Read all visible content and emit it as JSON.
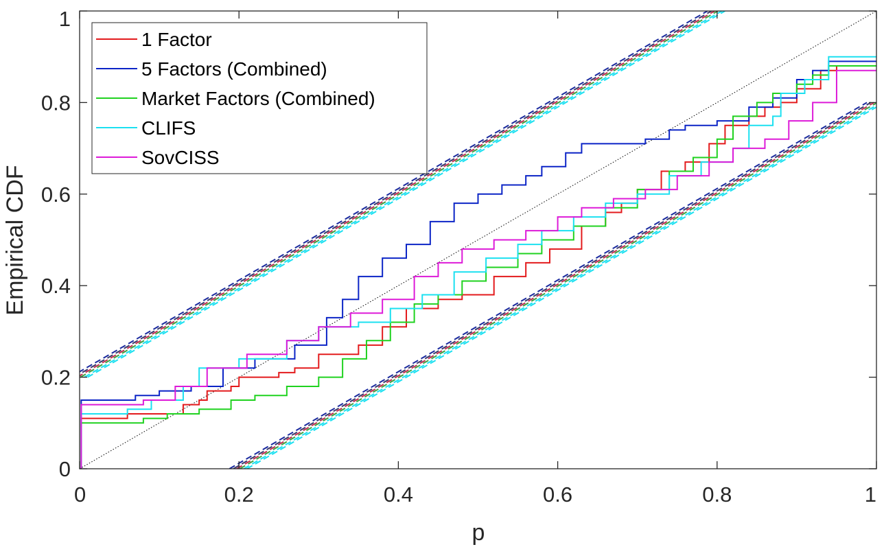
{
  "chart_data": {
    "type": "line",
    "xlabel": "p",
    "ylabel": "Empirical CDF",
    "xlim": [
      0,
      1
    ],
    "ylim": [
      0,
      1
    ],
    "xticks": [
      "0",
      "0.2",
      "0.4",
      "0.6",
      "0.8",
      "1"
    ],
    "yticks": [
      "0",
      "0.2",
      "0.4",
      "0.6",
      "0.8",
      "1"
    ],
    "legend_position": "top-left",
    "grid": false,
    "series": [
      {
        "name": "1 Factor",
        "color": "#e31a1c",
        "points": [
          [
            0,
            0
          ],
          [
            0.002,
            0.11
          ],
          [
            0.06,
            0.11
          ],
          [
            0.06,
            0.12
          ],
          [
            0.12,
            0.12
          ],
          [
            0.13,
            0.14
          ],
          [
            0.15,
            0.15
          ],
          [
            0.16,
            0.17
          ],
          [
            0.19,
            0.18
          ],
          [
            0.2,
            0.2
          ],
          [
            0.25,
            0.21
          ],
          [
            0.27,
            0.22
          ],
          [
            0.3,
            0.23
          ],
          [
            0.3,
            0.25
          ],
          [
            0.35,
            0.27
          ],
          [
            0.38,
            0.31
          ],
          [
            0.41,
            0.35
          ],
          [
            0.45,
            0.37
          ],
          [
            0.48,
            0.38
          ],
          [
            0.52,
            0.42
          ],
          [
            0.56,
            0.45
          ],
          [
            0.59,
            0.48
          ],
          [
            0.63,
            0.53
          ],
          [
            0.66,
            0.56
          ],
          [
            0.68,
            0.58
          ],
          [
            0.7,
            0.61
          ],
          [
            0.73,
            0.65
          ],
          [
            0.76,
            0.67
          ],
          [
            0.79,
            0.69
          ],
          [
            0.79,
            0.71
          ],
          [
            0.81,
            0.75
          ],
          [
            0.84,
            0.77
          ],
          [
            0.86,
            0.79
          ],
          [
            0.88,
            0.8
          ],
          [
            0.9,
            0.83
          ],
          [
            0.93,
            0.87
          ],
          [
            0.95,
            0.88
          ],
          [
            1,
            0.88
          ]
        ]
      },
      {
        "name": "5 Factors (Combined)",
        "color": "#0b24c6",
        "points": [
          [
            0,
            0
          ],
          [
            0.002,
            0.15
          ],
          [
            0.06,
            0.15
          ],
          [
            0.07,
            0.16
          ],
          [
            0.1,
            0.17
          ],
          [
            0.14,
            0.18
          ],
          [
            0.18,
            0.22
          ],
          [
            0.22,
            0.24
          ],
          [
            0.27,
            0.27
          ],
          [
            0.31,
            0.33
          ],
          [
            0.33,
            0.37
          ],
          [
            0.35,
            0.42
          ],
          [
            0.38,
            0.46
          ],
          [
            0.41,
            0.49
          ],
          [
            0.44,
            0.54
          ],
          [
            0.47,
            0.58
          ],
          [
            0.5,
            0.6
          ],
          [
            0.53,
            0.62
          ],
          [
            0.56,
            0.64
          ],
          [
            0.58,
            0.66
          ],
          [
            0.61,
            0.69
          ],
          [
            0.63,
            0.71
          ],
          [
            0.68,
            0.71
          ],
          [
            0.71,
            0.72
          ],
          [
            0.74,
            0.74
          ],
          [
            0.76,
            0.75
          ],
          [
            0.8,
            0.76
          ],
          [
            0.84,
            0.79
          ],
          [
            0.87,
            0.81
          ],
          [
            0.9,
            0.85
          ],
          [
            0.92,
            0.87
          ],
          [
            0.94,
            0.89
          ],
          [
            1,
            0.89
          ]
        ]
      },
      {
        "name": "Market Factors (Combined)",
        "color": "#1fd21f",
        "points": [
          [
            0,
            0
          ],
          [
            0.002,
            0.1
          ],
          [
            0.08,
            0.11
          ],
          [
            0.11,
            0.12
          ],
          [
            0.15,
            0.13
          ],
          [
            0.19,
            0.15
          ],
          [
            0.22,
            0.16
          ],
          [
            0.26,
            0.18
          ],
          [
            0.3,
            0.2
          ],
          [
            0.33,
            0.24
          ],
          [
            0.36,
            0.28
          ],
          [
            0.39,
            0.32
          ],
          [
            0.42,
            0.36
          ],
          [
            0.45,
            0.38
          ],
          [
            0.48,
            0.41
          ],
          [
            0.51,
            0.44
          ],
          [
            0.55,
            0.47
          ],
          [
            0.58,
            0.5
          ],
          [
            0.62,
            0.53
          ],
          [
            0.66,
            0.57
          ],
          [
            0.7,
            0.61
          ],
          [
            0.74,
            0.65
          ],
          [
            0.77,
            0.68
          ],
          [
            0.8,
            0.72
          ],
          [
            0.82,
            0.77
          ],
          [
            0.85,
            0.8
          ],
          [
            0.87,
            0.82
          ],
          [
            0.9,
            0.84
          ],
          [
            0.92,
            0.86
          ],
          [
            0.94,
            0.88
          ],
          [
            1,
            0.88
          ]
        ]
      },
      {
        "name": "CLIFS",
        "color": "#1be0f0",
        "points": [
          [
            0,
            0
          ],
          [
            0.002,
            0.12
          ],
          [
            0.06,
            0.13
          ],
          [
            0.09,
            0.15
          ],
          [
            0.13,
            0.18
          ],
          [
            0.15,
            0.22
          ],
          [
            0.2,
            0.24
          ],
          [
            0.26,
            0.28
          ],
          [
            0.3,
            0.31
          ],
          [
            0.35,
            0.32
          ],
          [
            0.39,
            0.35
          ],
          [
            0.43,
            0.38
          ],
          [
            0.47,
            0.43
          ],
          [
            0.51,
            0.46
          ],
          [
            0.55,
            0.49
          ],
          [
            0.58,
            0.52
          ],
          [
            0.62,
            0.55
          ],
          [
            0.66,
            0.58
          ],
          [
            0.7,
            0.6
          ],
          [
            0.74,
            0.64
          ],
          [
            0.78,
            0.67
          ],
          [
            0.82,
            0.7
          ],
          [
            0.84,
            0.75
          ],
          [
            0.87,
            0.77
          ],
          [
            0.88,
            0.82
          ],
          [
            0.91,
            0.85
          ],
          [
            0.94,
            0.9
          ],
          [
            1,
            0.9
          ]
        ]
      },
      {
        "name": "SovCISS",
        "color": "#dd1ad8",
        "points": [
          [
            0,
            0
          ],
          [
            0.002,
            0.14
          ],
          [
            0.08,
            0.15
          ],
          [
            0.12,
            0.18
          ],
          [
            0.16,
            0.22
          ],
          [
            0.21,
            0.25
          ],
          [
            0.26,
            0.28
          ],
          [
            0.3,
            0.31
          ],
          [
            0.34,
            0.34
          ],
          [
            0.38,
            0.37
          ],
          [
            0.42,
            0.42
          ],
          [
            0.45,
            0.45
          ],
          [
            0.48,
            0.48
          ],
          [
            0.52,
            0.5
          ],
          [
            0.56,
            0.52
          ],
          [
            0.6,
            0.55
          ],
          [
            0.63,
            0.57
          ],
          [
            0.67,
            0.59
          ],
          [
            0.71,
            0.61
          ],
          [
            0.75,
            0.64
          ],
          [
            0.79,
            0.67
          ],
          [
            0.82,
            0.7
          ],
          [
            0.86,
            0.72
          ],
          [
            0.89,
            0.76
          ],
          [
            0.92,
            0.8
          ],
          [
            0.95,
            0.87
          ],
          [
            1,
            0.87
          ]
        ]
      }
    ],
    "reference_line": {
      "color": "#000000",
      "from": [
        0,
        0
      ],
      "to": [
        1,
        1
      ]
    },
    "bands": {
      "upper": [
        [
          0,
          0.2
        ],
        [
          0.8,
          1
        ]
      ],
      "lower": [
        [
          0.2,
          0
        ],
        [
          1,
          0.8
        ]
      ],
      "offsets": [
        -0.012,
        -0.007,
        -0.003,
        0.001,
        0.006,
        0.01
      ],
      "colors": [
        "#1a2a9e",
        "#3a3a6a",
        "#c03050",
        "#40a040",
        "#1be0f0",
        "#1be0f0"
      ]
    }
  }
}
